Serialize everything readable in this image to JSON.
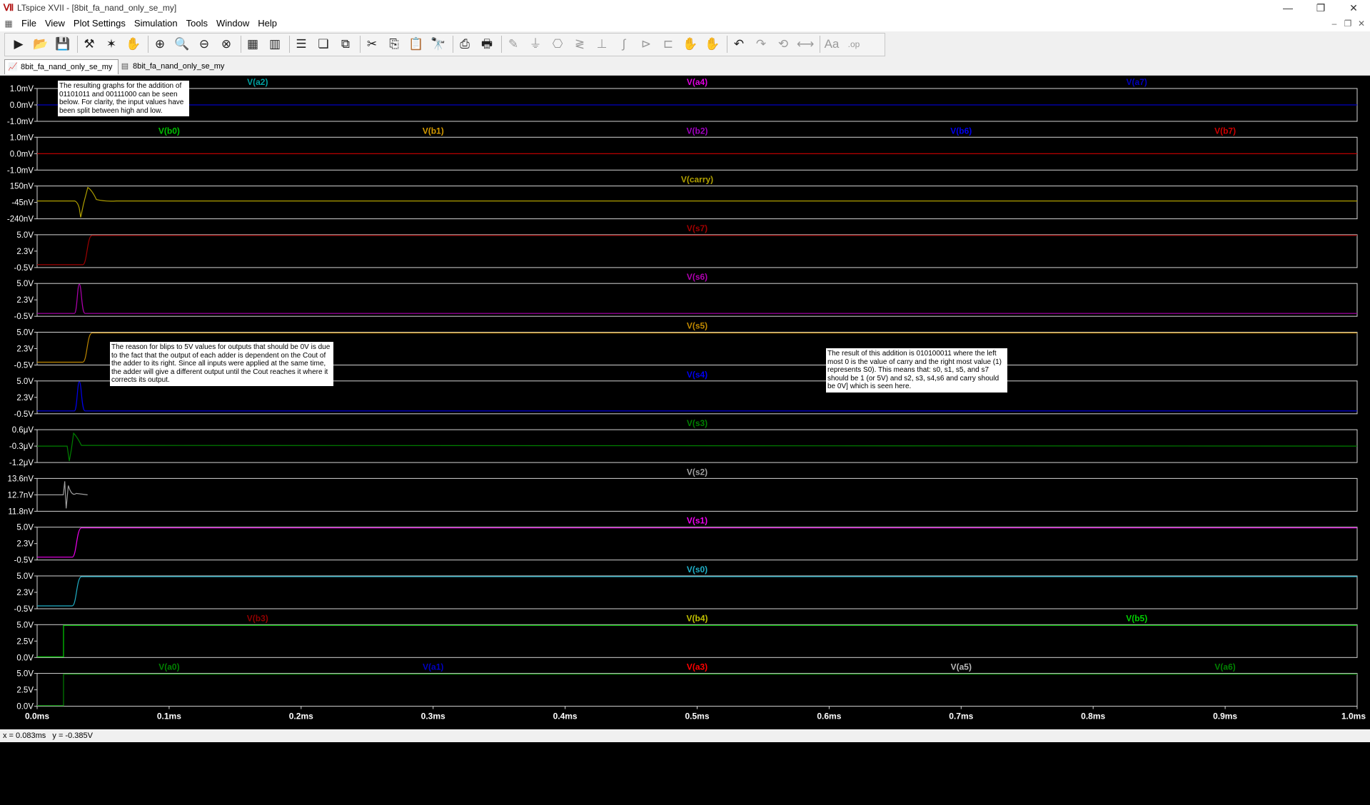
{
  "window": {
    "title": "LTspice XVII - [8bit_fa_nand_only_se_my]",
    "minimize": "—",
    "maximize": "❐",
    "close": "✕",
    "mdi_minimize": "–",
    "mdi_restore": "❐",
    "mdi_close": "✕"
  },
  "menu": [
    "File",
    "View",
    "Plot Settings",
    "Simulation",
    "Tools",
    "Window",
    "Help"
  ],
  "tabs": [
    {
      "label": "8bit_fa_nand_only_se_my",
      "icon": "waveform-icon",
      "active": true
    },
    {
      "label": "8bit_fa_nand_only_se_my",
      "icon": "schematic-icon",
      "active": false
    }
  ],
  "toolbar": [
    {
      "icon": "run-icon",
      "glyph": "▶",
      "enabled": true
    },
    {
      "icon": "open-folder-icon",
      "glyph": "📂",
      "enabled": true
    },
    {
      "icon": "save-icon",
      "glyph": "💾",
      "enabled": true
    },
    {
      "icon": "control-panel-icon",
      "glyph": "⚒",
      "enabled": true
    },
    {
      "icon": "halt-icon",
      "glyph": "✶",
      "enabled": true
    },
    {
      "icon": "pan-hand-icon",
      "glyph": "✋",
      "enabled": true
    },
    {
      "icon": "zoom-in-icon",
      "glyph": "⊕",
      "enabled": true
    },
    {
      "icon": "zoom-area-icon",
      "glyph": "🔍",
      "enabled": true
    },
    {
      "icon": "zoom-out-icon",
      "glyph": "⊖",
      "enabled": true
    },
    {
      "icon": "zoom-cancel-icon",
      "glyph": "⊗",
      "enabled": true
    },
    {
      "icon": "autorange-icon",
      "glyph": "▦",
      "enabled": true
    },
    {
      "icon": "grid-icon",
      "glyph": "▥",
      "enabled": true
    },
    {
      "icon": "tile-horizontal-icon",
      "glyph": "☰",
      "enabled": true
    },
    {
      "icon": "cascade-icon",
      "glyph": "❏",
      "enabled": true
    },
    {
      "icon": "tile-vertical-icon",
      "glyph": "⧉",
      "enabled": true
    },
    {
      "icon": "cut-icon",
      "glyph": "✂",
      "enabled": true
    },
    {
      "icon": "copy-icon",
      "glyph": "⎘",
      "enabled": true
    },
    {
      "icon": "paste-icon",
      "glyph": "📋",
      "enabled": true
    },
    {
      "icon": "find-icon",
      "glyph": "🔭",
      "enabled": true
    },
    {
      "icon": "print-setup-icon",
      "glyph": "⎙",
      "enabled": true
    },
    {
      "icon": "print-icon",
      "glyph": "🖶",
      "enabled": true
    },
    {
      "icon": "wire-icon",
      "glyph": "✎",
      "enabled": false
    },
    {
      "icon": "ground-icon",
      "glyph": "⏚",
      "enabled": false
    },
    {
      "icon": "label-icon",
      "glyph": "⎔",
      "enabled": false
    },
    {
      "icon": "resistor-icon",
      "glyph": "≷",
      "enabled": false
    },
    {
      "icon": "capacitor-icon",
      "glyph": "⊥",
      "enabled": false
    },
    {
      "icon": "inductor-icon",
      "glyph": "∫",
      "enabled": false
    },
    {
      "icon": "diode-icon",
      "glyph": "⊳",
      "enabled": false
    },
    {
      "icon": "component-icon",
      "glyph": "⊏",
      "enabled": false
    },
    {
      "icon": "move-icon",
      "glyph": "✋",
      "enabled": false
    },
    {
      "icon": "drag-icon",
      "glyph": "✋",
      "enabled": false
    },
    {
      "icon": "undo-icon",
      "glyph": "↶",
      "enabled": true
    },
    {
      "icon": "redo-icon",
      "glyph": "↷",
      "enabled": false
    },
    {
      "icon": "rotate-icon",
      "glyph": "⟲",
      "enabled": false
    },
    {
      "icon": "mirror-icon",
      "glyph": "⟷",
      "enabled": false
    },
    {
      "icon": "text-icon",
      "glyph": "Aa",
      "enabled": false
    },
    {
      "icon": "spice-directive-icon",
      "glyph": ".op",
      "enabled": false
    }
  ],
  "plot": {
    "x_axis": {
      "ticks": [
        "0.0ms",
        "0.1ms",
        "0.2ms",
        "0.3ms",
        "0.4ms",
        "0.5ms",
        "0.6ms",
        "0.7ms",
        "0.8ms",
        "0.9ms",
        "1.0ms"
      ],
      "range_ms": [
        0,
        1
      ]
    },
    "colors": {
      "background": "#000000",
      "frame": "#d4d4d4",
      "tick_text": "#ffffff",
      "green": "#00c000",
      "orange": "#d49a00",
      "violet": "#a000c0",
      "blue": "#0000f0",
      "red": "#d00000",
      "olive": "#b0a000",
      "darkred": "#a00000",
      "purple": "#b000b0",
      "gold": "#c08800",
      "darkgreen": "#008000",
      "grey": "#a0a0a0",
      "magenta": "#f000f0",
      "cyan": "#20b0c8",
      "mutedred": "#900000",
      "yellow": "#c0c000",
      "lime": "#00d000",
      "brightred": "#ff0000",
      "lightgrey": "#b8b8b8",
      "teal": "#00a0a0",
      "brightviolet": "#e000e0",
      "navy": "#0000c0"
    },
    "panes": [
      {
        "traces": [
          {
            "name": "V(a2)",
            "color": "teal",
            "label_x": 0.167
          },
          {
            "name": "V(a4)",
            "color": "brightviolet",
            "label_x": 0.5
          },
          {
            "name": "V(a7)",
            "color": "navy",
            "label_x": 0.833
          }
        ],
        "yticks": [
          "1.0mV",
          "0.0mV",
          "-1.0mV"
        ],
        "line_color": "navy",
        "line_value": 0.5
      },
      {
        "traces": [
          {
            "name": "V(b0)",
            "color": "green",
            "label_x": 0.1
          },
          {
            "name": "V(b1)",
            "color": "orange",
            "label_x": 0.3
          },
          {
            "name": "V(b2)",
            "color": "violet",
            "label_x": 0.5
          },
          {
            "name": "V(b6)",
            "color": "blue",
            "label_x": 0.7
          },
          {
            "name": "V(b7)",
            "color": "red",
            "label_x": 0.9
          }
        ],
        "yticks": [
          "1.0mV",
          "0.0mV",
          "-1.0mV"
        ],
        "line_color": "red",
        "line_value": 0.5
      },
      {
        "traces": [
          {
            "name": "V(carry)",
            "color": "olive",
            "label_x": 0.5
          }
        ],
        "yticks": [
          "150nV",
          "-45nV",
          "-240nV"
        ],
        "wave": "carry",
        "line_color": "olive"
      },
      {
        "traces": [
          {
            "name": "V(s7)",
            "color": "darkred",
            "label_x": 0.5
          }
        ],
        "yticks": [
          "5.0V",
          "2.3V",
          "-0.5V"
        ],
        "wave": "rise",
        "rise_ms": 0.04,
        "line_color": "darkred"
      },
      {
        "traces": [
          {
            "name": "V(s6)",
            "color": "purple",
            "label_x": 0.5
          }
        ],
        "yticks": [
          "5.0V",
          "2.3V",
          "-0.5V"
        ],
        "wave": "blip",
        "blip_ms": 0.032,
        "line_color": "purple"
      },
      {
        "traces": [
          {
            "name": "V(s5)",
            "color": "gold",
            "label_x": 0.5
          }
        ],
        "yticks": [
          "5.0V",
          "2.3V",
          "-0.5V"
        ],
        "wave": "rise",
        "rise_ms": 0.04,
        "line_color": "gold"
      },
      {
        "traces": [
          {
            "name": "V(s4)",
            "color": "blue",
            "label_x": 0.5
          }
        ],
        "yticks": [
          "5.0V",
          "2.3V",
          "-0.5V"
        ],
        "wave": "blip",
        "blip_ms": 0.032,
        "line_color": "blue"
      },
      {
        "traces": [
          {
            "name": "V(s3)",
            "color": "darkgreen",
            "label_x": 0.5
          }
        ],
        "yticks": [
          "0.6μV",
          "-0.3μV",
          "-1.2μV"
        ],
        "wave": "s3",
        "line_color": "darkgreen"
      },
      {
        "traces": [
          {
            "name": "V(s2)",
            "color": "grey",
            "label_x": 0.5
          }
        ],
        "yticks": [
          "13.6nV",
          "12.7nV",
          "11.8nV"
        ],
        "wave": "s2",
        "line_color": "grey"
      },
      {
        "traces": [
          {
            "name": "V(s1)",
            "color": "magenta",
            "label_x": 0.5
          }
        ],
        "yticks": [
          "5.0V",
          "2.3V",
          "-0.5V"
        ],
        "wave": "rise",
        "rise_ms": 0.032,
        "line_color": "magenta"
      },
      {
        "traces": [
          {
            "name": "V(s0)",
            "color": "cyan",
            "label_x": 0.5
          }
        ],
        "yticks": [
          "5.0V",
          "2.3V",
          "-0.5V"
        ],
        "wave": "rise",
        "rise_ms": 0.032,
        "line_color": "cyan"
      },
      {
        "traces": [
          {
            "name": "V(b3)",
            "color": "mutedred",
            "label_x": 0.167
          },
          {
            "name": "V(b4)",
            "color": "yellow",
            "label_x": 0.5
          },
          {
            "name": "V(b5)",
            "color": "lime",
            "label_x": 0.833
          }
        ],
        "yticks": [
          "5.0V",
          "2.5V",
          "0.0V"
        ],
        "wave": "step",
        "step_ms": 0.02,
        "line_color": "lime"
      },
      {
        "traces": [
          {
            "name": "V(a0)",
            "color": "darkgreen",
            "label_x": 0.1
          },
          {
            "name": "V(a1)",
            "color": "navy",
            "label_x": 0.3
          },
          {
            "name": "V(a3)",
            "color": "brightred",
            "label_x": 0.5
          },
          {
            "name": "V(a5)",
            "color": "lightgrey",
            "label_x": 0.7
          },
          {
            "name": "V(a6)",
            "color": "darkgreen",
            "label_x": 0.9
          }
        ],
        "yticks": [
          "5.0V",
          "2.5V",
          "0.0V"
        ],
        "wave": "step",
        "step_ms": 0.02,
        "line_color": "darkgreen"
      }
    ]
  },
  "annotations": [
    {
      "id": "note-intro",
      "text": "The resulting graphs for the addition of 01101011 and 00111000 can be seen below. For clarity, the input values have been split between high and low."
    },
    {
      "id": "note-blips",
      "text": "The reason for blips to 5V values for outputs that should be 0V is due to the fact that the output of each adder is dependent on the Cout of the adder to its right. Since all inputs were applied at the same time, the adder will give a different output until the Cout reaches it where it corrects its output."
    },
    {
      "id": "note-result",
      "text": "The result of this addition is 010100011 where the left most 0 is the value of carry and the right most value (1) represents S0). This means that: s0, s1, s5, and s7 should be 1 (or 5V) and s2, s3, s4,s6 and carry should be 0V] which is seen here."
    }
  ],
  "status": {
    "coords": "x = 0.083ms   y = -0.385V"
  }
}
